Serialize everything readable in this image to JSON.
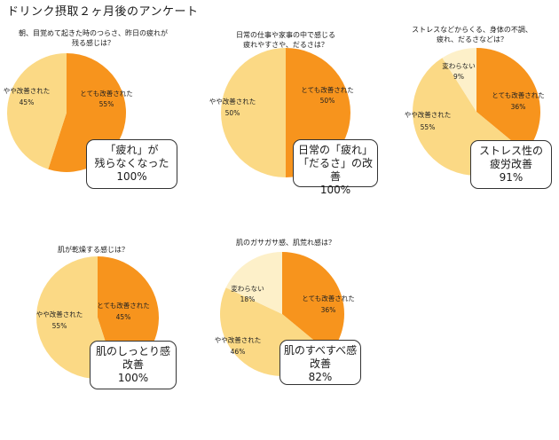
{
  "page_title": "ドリンク摂取２ヶ月後のアンケート",
  "colors": {
    "orange": "#f7941d",
    "pale": "#fbd985",
    "cream": "#fdf0c9"
  },
  "chart_data": [
    {
      "type": "pie",
      "title": "朝、目覚めて起きた時のつらさ、昨日の疲れが\n残る感じは？",
      "slices": [
        {
          "label": "とても改善された",
          "value": 55,
          "pct": "55%"
        },
        {
          "label": "やや改善された",
          "value": 45,
          "pct": "45%"
        }
      ],
      "callout": "「疲れ」が\n残らなくなった\n100%"
    },
    {
      "type": "pie",
      "title": "日常の仕事や家事の中で感じる\n疲れやすさや、だるさは？",
      "slices": [
        {
          "label": "とても改善された",
          "value": 50,
          "pct": "50%"
        },
        {
          "label": "やや改善された",
          "value": 50,
          "pct": "50%"
        }
      ],
      "callout": "日常の「疲れ」\n「だるさ」の改善\n100%"
    },
    {
      "type": "pie",
      "title": "ストレスなどからくる、身体の不調、\n疲れ、だるさなどは？",
      "slices": [
        {
          "label": "とても改善された",
          "value": 36,
          "pct": "36%"
        },
        {
          "label": "やや改善された",
          "value": 55,
          "pct": "55%"
        },
        {
          "label": "変わらない",
          "value": 9,
          "pct": "9%"
        }
      ],
      "callout": "ストレス性の\n疲労改善\n91%"
    },
    {
      "type": "pie",
      "title": "肌が乾燥する感じは？",
      "slices": [
        {
          "label": "とても改善された",
          "value": 45,
          "pct": "45%"
        },
        {
          "label": "やや改善された",
          "value": 55,
          "pct": "55%"
        }
      ],
      "callout": "肌のしっとり感\n改善\n100%"
    },
    {
      "type": "pie",
      "title": "肌のガサガサ感、肌荒れ感は？",
      "slices": [
        {
          "label": "とても改善された",
          "value": 36,
          "pct": "36%"
        },
        {
          "label": "やや改善された",
          "value": 46,
          "pct": "46%"
        },
        {
          "label": "変わらない",
          "value": 18,
          "pct": "18%"
        }
      ],
      "callout": "肌のすべすべ感\n改善\n82%"
    }
  ]
}
